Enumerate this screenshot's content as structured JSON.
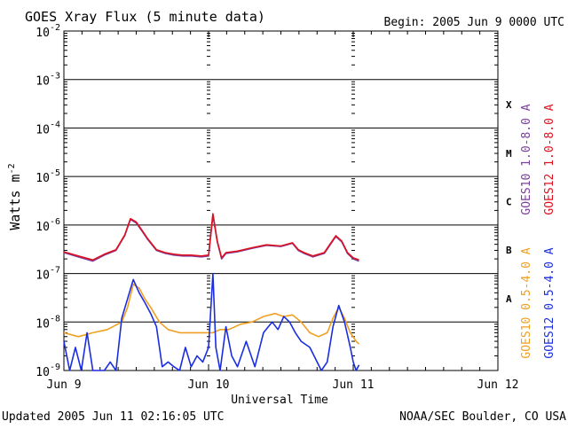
{
  "header": {
    "title": "GOES Xray Flux (5 minute data)",
    "begin": "Begin:  2005 Jun 9 0000 UTC"
  },
  "footer": {
    "updated": "Updated 2005 Jun 11 02:16:05 UTC",
    "credit": "NOAA/SEC Boulder, CO USA"
  },
  "chart_data": {
    "type": "line",
    "title": "GOES Xray Flux (5 minute data)",
    "xlabel": "Universal Time",
    "ylabel": "Watts m",
    "ylabel_sup": "-2",
    "yscale": "log",
    "ylim": [
      1e-09,
      0.01
    ],
    "xlim_days": [
      0,
      3
    ],
    "x_ticks": [
      "Jun 9",
      "Jun 10",
      "Jun 11",
      "Jun 12"
    ],
    "y_ticks": [
      {
        "base": "10",
        "exp": "-9"
      },
      {
        "base": "10",
        "exp": "-8"
      },
      {
        "base": "10",
        "exp": "-7"
      },
      {
        "base": "10",
        "exp": "-6"
      },
      {
        "base": "10",
        "exp": "-5"
      },
      {
        "base": "10",
        "exp": "-4"
      },
      {
        "base": "10",
        "exp": "-3"
      },
      {
        "base": "10",
        "exp": "-2"
      }
    ],
    "flare_classes": [
      {
        "label": "A",
        "level": 1e-08
      },
      {
        "label": "B",
        "level": 1e-07
      },
      {
        "label": "C",
        "level": 1e-06
      },
      {
        "label": "M",
        "level": 1e-05
      },
      {
        "label": "X",
        "level": 0.0001
      }
    ],
    "legend": [
      {
        "name": "GOES10 1.0-8.0 A",
        "color": "#7b3fa0"
      },
      {
        "name": "GOES12 1.0-8.0 A",
        "color": "#dd1020"
      },
      {
        "name": "GOES10 0.5-4.0 A",
        "color": "#f0a020"
      },
      {
        "name": "GOES12 0.5-4.0 A",
        "color": "#1a2ee0"
      }
    ],
    "series": [
      {
        "name": "GOES10 1.0-8.0 A",
        "color": "#7b3fa0",
        "x": [
          0.0,
          0.1,
          0.2,
          0.28,
          0.36,
          0.42,
          0.46,
          0.5,
          0.54,
          0.58,
          0.64,
          0.7,
          0.76,
          0.82,
          0.88,
          0.95,
          1.0,
          1.03,
          1.06,
          1.09,
          1.12,
          1.2,
          1.3,
          1.4,
          1.5,
          1.58,
          1.62,
          1.66,
          1.72,
          1.8,
          1.88,
          1.92,
          1.96,
          2.0,
          2.04
        ],
        "y": [
          2.7e-07,
          2.2e-07,
          1.8e-07,
          2.4e-07,
          3e-07,
          6e-07,
          1.3e-06,
          1.1e-06,
          7.5e-07,
          5e-07,
          3e-07,
          2.6e-07,
          2.4e-07,
          2.3e-07,
          2.3e-07,
          2.2e-07,
          2.3e-07,
          1.6e-06,
          4.5e-07,
          2e-07,
          2.6e-07,
          2.8e-07,
          3.3e-07,
          3.8e-07,
          3.6e-07,
          4.2e-07,
          3e-07,
          2.6e-07,
          2.2e-07,
          2.6e-07,
          5.8e-07,
          4.5e-07,
          2.6e-07,
          2e-07,
          1.8e-07
        ]
      },
      {
        "name": "GOES12 1.0-8.0 A",
        "color": "#dd1020",
        "x": [
          0.0,
          0.1,
          0.2,
          0.28,
          0.36,
          0.42,
          0.46,
          0.5,
          0.54,
          0.58,
          0.64,
          0.7,
          0.76,
          0.82,
          0.88,
          0.95,
          1.0,
          1.03,
          1.06,
          1.09,
          1.12,
          1.2,
          1.3,
          1.4,
          1.5,
          1.58,
          1.62,
          1.66,
          1.72,
          1.8,
          1.88,
          1.92,
          1.96,
          2.0,
          2.04
        ],
        "y": [
          2.8e-07,
          2.3e-07,
          1.9e-07,
          2.5e-07,
          3.1e-07,
          6.2e-07,
          1.35e-06,
          1.15e-06,
          7.8e-07,
          5.2e-07,
          3.1e-07,
          2.7e-07,
          2.5e-07,
          2.4e-07,
          2.4e-07,
          2.3e-07,
          2.4e-07,
          1.7e-06,
          4.7e-07,
          2.1e-07,
          2.7e-07,
          2.9e-07,
          3.4e-07,
          3.9e-07,
          3.7e-07,
          4.3e-07,
          3.1e-07,
          2.7e-07,
          2.3e-07,
          2.7e-07,
          6e-07,
          4.7e-07,
          2.7e-07,
          2.1e-07,
          1.9e-07
        ]
      },
      {
        "name": "GOES10 0.5-4.0 A",
        "color": "#f0a020",
        "x": [
          0.0,
          0.1,
          0.2,
          0.3,
          0.4,
          0.44,
          0.48,
          0.52,
          0.56,
          0.6,
          0.66,
          0.72,
          0.8,
          0.9,
          0.98,
          1.03,
          1.08,
          1.14,
          1.22,
          1.3,
          1.38,
          1.46,
          1.52,
          1.58,
          1.64,
          1.7,
          1.76,
          1.82,
          1.86,
          1.9,
          1.94,
          1.98,
          2.02,
          2.04
        ],
        "y": [
          6e-09,
          5e-09,
          6e-09,
          7e-09,
          1e-08,
          2e-08,
          6e-08,
          5e-08,
          3e-08,
          2e-08,
          1e-08,
          7e-09,
          6e-09,
          6e-09,
          6e-09,
          6e-09,
          7e-09,
          7e-09,
          9e-09,
          1e-08,
          1.3e-08,
          1.5e-08,
          1.3e-08,
          1.4e-08,
          1e-08,
          6e-09,
          5e-09,
          6e-09,
          1.2e-08,
          2e-08,
          1.2e-08,
          6e-09,
          4e-09,
          3.5e-09
        ]
      },
      {
        "name": "GOES12 0.5-4.0 A",
        "color": "#1a2ee0",
        "x": [
          0.0,
          0.04,
          0.08,
          0.12,
          0.16,
          0.2,
          0.24,
          0.28,
          0.32,
          0.36,
          0.4,
          0.44,
          0.48,
          0.52,
          0.56,
          0.6,
          0.64,
          0.68,
          0.72,
          0.76,
          0.8,
          0.84,
          0.88,
          0.92,
          0.96,
          1.0,
          1.03,
          1.05,
          1.08,
          1.12,
          1.16,
          1.2,
          1.26,
          1.32,
          1.38,
          1.44,
          1.48,
          1.52,
          1.56,
          1.6,
          1.64,
          1.7,
          1.78,
          1.82,
          1.86,
          1.9,
          1.94,
          1.98,
          2.0,
          2.02,
          2.04
        ],
        "y": [
          4e-09,
          1e-09,
          3e-09,
          1e-09,
          6e-09,
          1e-09,
          1e-09,
          1e-09,
          1.5e-09,
          1e-09,
          1.2e-08,
          3e-08,
          7.5e-08,
          4e-08,
          2.5e-08,
          1.5e-08,
          8e-09,
          1.2e-09,
          1.5e-09,
          1.2e-09,
          1e-09,
          3e-09,
          1.2e-09,
          2e-09,
          1.5e-09,
          3e-09,
          1e-07,
          3e-09,
          1e-09,
          8e-09,
          2e-09,
          1.2e-09,
          4e-09,
          1.2e-09,
          6e-09,
          1e-08,
          7e-09,
          1.3e-08,
          1e-08,
          6e-09,
          4e-09,
          3e-09,
          1e-09,
          1.5e-09,
          8e-09,
          2.2e-08,
          1e-08,
          3e-09,
          1.5e-09,
          1e-09,
          1.3e-09
        ]
      }
    ]
  }
}
